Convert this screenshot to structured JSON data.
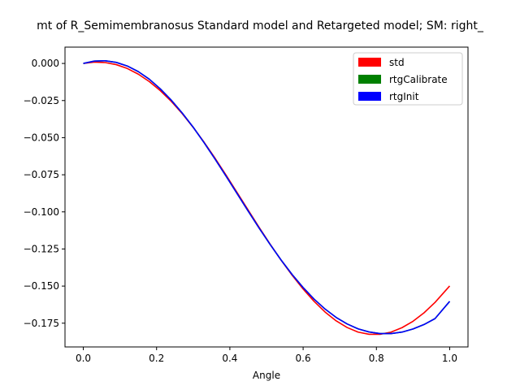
{
  "chart_data": {
    "type": "line",
    "title": "mt of R_Semimembranosus Standard model and Retargeted model; SM: right_",
    "xlabel": "Angle",
    "ylabel": "",
    "xlim": [
      -0.05,
      1.05
    ],
    "ylim": [
      -0.191,
      0.011
    ],
    "xticks": [
      0.0,
      0.2,
      0.4,
      0.6,
      0.8,
      1.0
    ],
    "xtick_labels": [
      "0.0",
      "0.2",
      "0.4",
      "0.6",
      "0.8",
      "1.0"
    ],
    "yticks": [
      0.0,
      -0.025,
      -0.05,
      -0.075,
      -0.1,
      -0.125,
      -0.15,
      -0.175
    ],
    "ytick_labels": [
      "0.000",
      "−0.025",
      "−0.050",
      "−0.075",
      "−0.100",
      "−0.125",
      "−0.150",
      "−0.175"
    ],
    "grid": false,
    "legend_position": "top-right",
    "x": [
      0.0,
      0.03,
      0.06,
      0.09,
      0.12,
      0.15,
      0.18,
      0.21,
      0.24,
      0.27,
      0.3,
      0.33,
      0.36,
      0.39,
      0.42,
      0.45,
      0.48,
      0.51,
      0.54,
      0.57,
      0.6,
      0.63,
      0.66,
      0.69,
      0.72,
      0.75,
      0.78,
      0.81,
      0.84,
      0.87,
      0.9,
      0.93,
      0.96,
      1.0
    ],
    "series": [
      {
        "name": "std",
        "color": "#ff0000",
        "values": [
          0.0,
          0.0009,
          0.0006,
          -0.0008,
          -0.0034,
          -0.0072,
          -0.0122,
          -0.0183,
          -0.0255,
          -0.0338,
          -0.0431,
          -0.0532,
          -0.064,
          -0.0754,
          -0.0871,
          -0.0988,
          -0.1105,
          -0.1218,
          -0.1326,
          -0.1427,
          -0.152,
          -0.1603,
          -0.1675,
          -0.1734,
          -0.1779,
          -0.181,
          -0.1825,
          -0.1825,
          -0.181,
          -0.178,
          -0.1737,
          -0.168,
          -0.161,
          -0.1499
        ]
      },
      {
        "name": "rtgCalibrate",
        "color": "#008000",
        "values": [
          0.0,
          0.0016,
          0.0018,
          0.0007,
          -0.0017,
          -0.0055,
          -0.0106,
          -0.0171,
          -0.0247,
          -0.0334,
          -0.043,
          -0.0535,
          -0.0646,
          -0.0761,
          -0.0878,
          -0.0995,
          -0.111,
          -0.122,
          -0.1325,
          -0.1422,
          -0.151,
          -0.1588,
          -0.1655,
          -0.1711,
          -0.1755,
          -0.1788,
          -0.1809,
          -0.182,
          -0.182,
          -0.181,
          -0.1789,
          -0.1759,
          -0.1719,
          -0.1603
        ]
      },
      {
        "name": "rtgInit",
        "color": "#0000ff",
        "values": [
          0.0,
          0.0016,
          0.0018,
          0.0007,
          -0.0017,
          -0.0055,
          -0.0106,
          -0.0171,
          -0.0247,
          -0.0334,
          -0.043,
          -0.0535,
          -0.0646,
          -0.0761,
          -0.0878,
          -0.0995,
          -0.111,
          -0.122,
          -0.1325,
          -0.1422,
          -0.151,
          -0.1588,
          -0.1655,
          -0.1711,
          -0.1755,
          -0.1788,
          -0.1809,
          -0.182,
          -0.182,
          -0.181,
          -0.1789,
          -0.1759,
          -0.1719,
          -0.1603
        ]
      }
    ]
  }
}
